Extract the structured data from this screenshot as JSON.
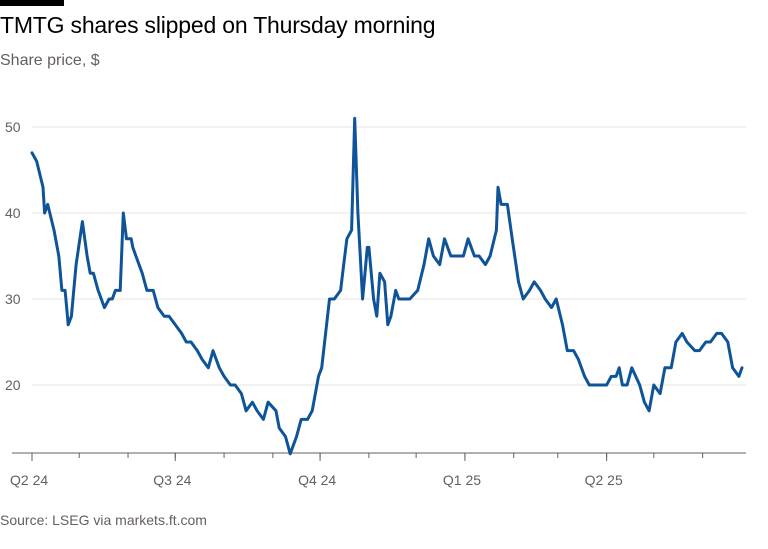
{
  "title": "TMTG shares slipped on Thursday morning",
  "subtitle": "Share price, $",
  "source": "Source: LSEG via markets.ft.com",
  "colors": {
    "line": "#0f5499",
    "grid": "#e6e6e6",
    "axis": "#66605c",
    "background": "#ffffff"
  },
  "chart_data": {
    "type": "line",
    "title": "TMTG shares slipped on Thursday morning",
    "ylabel": "Share price, $",
    "xlabel": "",
    "ylim": [
      11,
      53
    ],
    "yticks": [
      20,
      30,
      40,
      50
    ],
    "grid": true,
    "x_start": "2024-04-01",
    "x_end": "2025-06-26",
    "xticks": [
      {
        "label": "Q2 24",
        "date": "2024-04-01"
      },
      {
        "label": "Q3 24",
        "date": "2024-07-01"
      },
      {
        "label": "Q4 24",
        "date": "2024-10-01"
      },
      {
        "label": "Q1 25",
        "date": "2025-01-01"
      },
      {
        "label": "Q2 25",
        "date": "2025-04-01"
      }
    ],
    "series": [
      {
        "name": "",
        "x": [
          "2024-04-01",
          "2024-04-04",
          "2024-04-08",
          "2024-04-09",
          "2024-04-11",
          "2024-04-15",
          "2024-04-18",
          "2024-04-20",
          "2024-04-22",
          "2024-04-24",
          "2024-04-26",
          "2024-04-29",
          "2024-05-03",
          "2024-05-06",
          "2024-05-08",
          "2024-05-10",
          "2024-05-13",
          "2024-05-15",
          "2024-05-17",
          "2024-05-20",
          "2024-05-22",
          "2024-05-24",
          "2024-05-27",
          "2024-05-29",
          "2024-05-31",
          "2024-06-03",
          "2024-06-04",
          "2024-06-06",
          "2024-06-10",
          "2024-06-13",
          "2024-06-17",
          "2024-06-20",
          "2024-06-24",
          "2024-06-27",
          "2024-07-01",
          "2024-07-05",
          "2024-07-08",
          "2024-07-11",
          "2024-07-15",
          "2024-07-18",
          "2024-07-22",
          "2024-07-25",
          "2024-07-29",
          "2024-08-01",
          "2024-08-05",
          "2024-08-08",
          "2024-08-12",
          "2024-08-15",
          "2024-08-19",
          "2024-08-22",
          "2024-08-26",
          "2024-08-29",
          "2024-09-03",
          "2024-09-05",
          "2024-09-09",
          "2024-09-12",
          "2024-09-16",
          "2024-09-19",
          "2024-09-23",
          "2024-09-26",
          "2024-09-30",
          "2024-10-02",
          "2024-10-07",
          "2024-10-10",
          "2024-10-14",
          "2024-10-16",
          "2024-10-18",
          "2024-10-21",
          "2024-10-23",
          "2024-10-25",
          "2024-10-28",
          "2024-10-29",
          "2024-10-31",
          "2024-11-01",
          "2024-11-04",
          "2024-11-06",
          "2024-11-08",
          "2024-11-11",
          "2024-11-13",
          "2024-11-15",
          "2024-11-18",
          "2024-11-20",
          "2024-11-22",
          "2024-11-25",
          "2024-11-27",
          "2024-12-02",
          "2024-12-06",
          "2024-12-09",
          "2024-12-12",
          "2024-12-16",
          "2024-12-19",
          "2024-12-23",
          "2024-12-27",
          "2024-12-31",
          "2025-01-03",
          "2025-01-07",
          "2025-01-10",
          "2025-01-14",
          "2025-01-17",
          "2025-01-21",
          "2025-01-22",
          "2025-01-24",
          "2025-01-28",
          "2025-01-31",
          "2025-02-04",
          "2025-02-07",
          "2025-02-11",
          "2025-02-14",
          "2025-02-18",
          "2025-02-21",
          "2025-02-25",
          "2025-02-28",
          "2025-03-04",
          "2025-03-07",
          "2025-03-11",
          "2025-03-14",
          "2025-03-18",
          "2025-03-21",
          "2025-03-25",
          "2025-03-28",
          "2025-04-01",
          "2025-04-04",
          "2025-04-07",
          "2025-04-09",
          "2025-04-11",
          "2025-04-14",
          "2025-04-17",
          "2025-04-22",
          "2025-04-25",
          "2025-04-28",
          "2025-05-01",
          "2025-05-05",
          "2025-05-08",
          "2025-05-12",
          "2025-05-15",
          "2025-05-19",
          "2025-05-22",
          "2025-05-27",
          "2025-05-30",
          "2025-06-03",
          "2025-06-06",
          "2025-06-10",
          "2025-06-13",
          "2025-06-17",
          "2025-06-20",
          "2025-06-24",
          "2025-06-26"
        ],
        "values": [
          47,
          46,
          43,
          40,
          41,
          38,
          35,
          31,
          31,
          27,
          28,
          34,
          39,
          35,
          33,
          33,
          31,
          30,
          29,
          30,
          30,
          31,
          31,
          40,
          37,
          37,
          36,
          35,
          33,
          31,
          31,
          29,
          28,
          28,
          27,
          26,
          25,
          25,
          24,
          23,
          22,
          24,
          22,
          21,
          20,
          20,
          19,
          17,
          18,
          17,
          16,
          18,
          17,
          15,
          14,
          12,
          14,
          16,
          16,
          17,
          21,
          22,
          30,
          30,
          31,
          34,
          37,
          38,
          51,
          40,
          30,
          32,
          36,
          36,
          30,
          28,
          33,
          32,
          27,
          28,
          31,
          30,
          30,
          30,
          30,
          31,
          34,
          37,
          35,
          34,
          37,
          35,
          35,
          35,
          37,
          35,
          35,
          34,
          35,
          38,
          43,
          41,
          41,
          37,
          32,
          30,
          31,
          32,
          31,
          30,
          29,
          30,
          27,
          24,
          24,
          23,
          21,
          20,
          20,
          20,
          20,
          21,
          21,
          22,
          20,
          20,
          22,
          20,
          18,
          17,
          20,
          19,
          22,
          22,
          25,
          26,
          25,
          24,
          24,
          25,
          25,
          26,
          26,
          25,
          22,
          21,
          22
        ]
      }
    ]
  }
}
